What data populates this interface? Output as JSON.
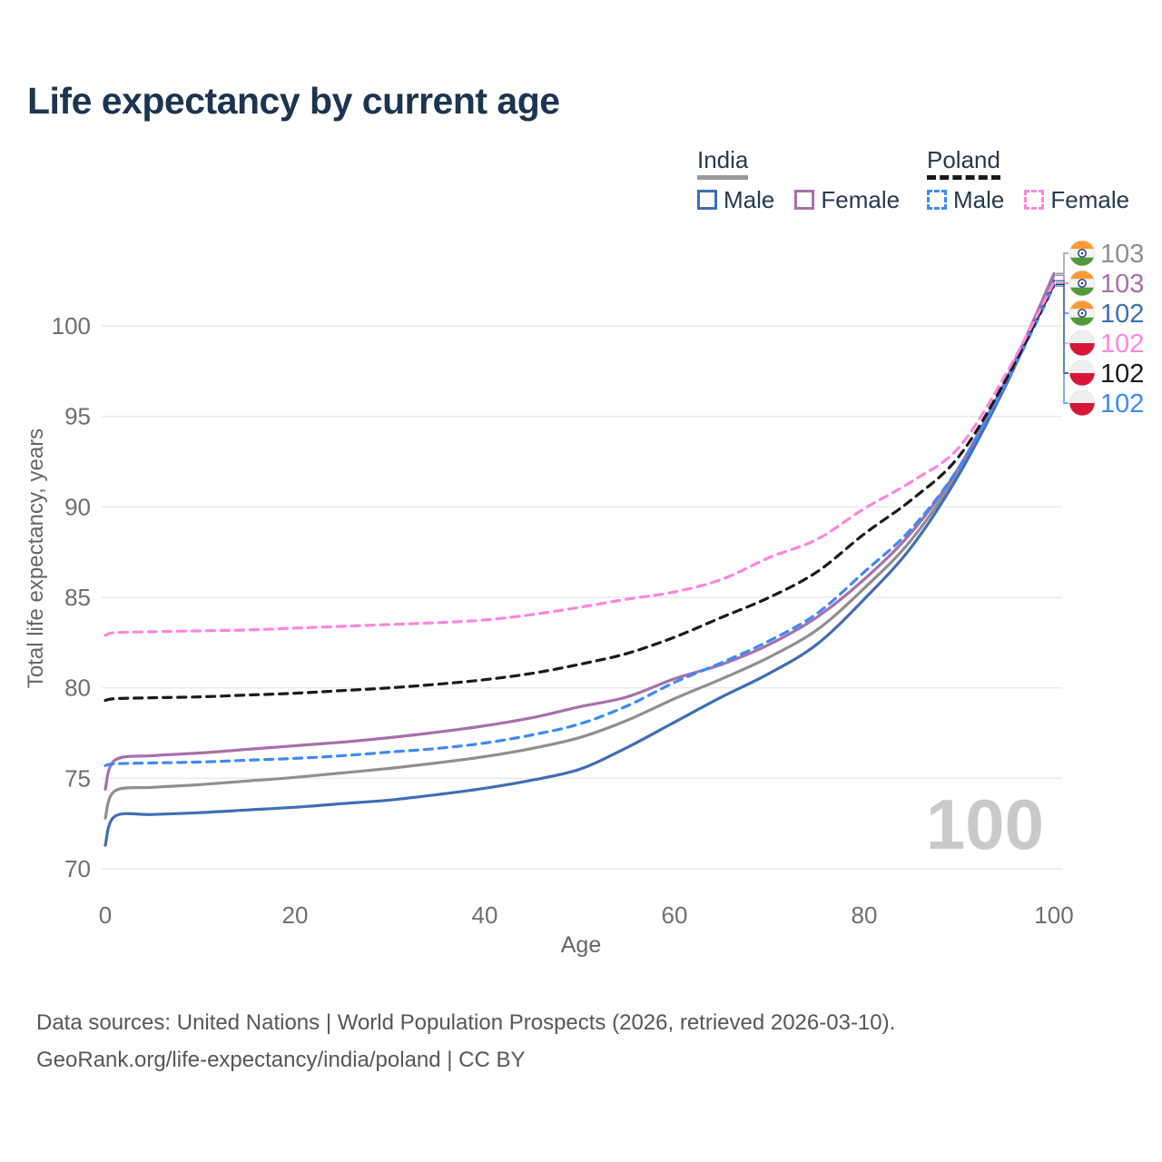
{
  "title": "Life expectancy by current age",
  "watermark": "100",
  "footer": {
    "line1": "Data sources: United Nations | World Population Prospects (2026, retrieved 2026-03-10).",
    "line2": "GeoRank.org/life-expectancy/india/poland | CC BY"
  },
  "legend": {
    "groups": [
      {
        "name": "India",
        "line_style": "solid",
        "underline_color": "#999999",
        "items": [
          {
            "label": "Male",
            "color": "#3f6fb5",
            "dashed": false
          },
          {
            "label": "Female",
            "color": "#a86fad",
            "dashed": false
          }
        ]
      },
      {
        "name": "Poland",
        "line_style": "dashed",
        "underline_color": "#1a1a1a",
        "items": [
          {
            "label": "Male",
            "color": "#3d8af7",
            "dashed": true
          },
          {
            "label": "Female",
            "color": "#ff85e0",
            "dashed": true
          }
        ]
      }
    ]
  },
  "chart_data": {
    "type": "line",
    "title": "Life expectancy by current age",
    "xlabel": "Age",
    "ylabel": "Total life expectancy, years",
    "xlim": [
      0,
      100
    ],
    "ylim": [
      70,
      103
    ],
    "xticks": [
      0,
      20,
      40,
      60,
      80,
      100
    ],
    "yticks": [
      70,
      75,
      80,
      85,
      90,
      95,
      100
    ],
    "grid": true,
    "legend_position": "top-right",
    "x": [
      0,
      1,
      5,
      10,
      15,
      20,
      25,
      30,
      35,
      40,
      45,
      50,
      55,
      60,
      65,
      70,
      75,
      80,
      85,
      90,
      95,
      100
    ],
    "series": [
      {
        "name": "India Both sexes",
        "country": "India",
        "sex": "both",
        "color": "#8f8f8f",
        "dash": false,
        "end_label": "103",
        "values": [
          72.8,
          74.3,
          74.5,
          74.65,
          74.85,
          75.05,
          75.3,
          75.55,
          75.85,
          76.2,
          76.65,
          77.25,
          78.2,
          79.4,
          80.5,
          81.7,
          83.2,
          85.5,
          88.2,
          92.0,
          97.0,
          102.9
        ]
      },
      {
        "name": "India Male",
        "country": "India",
        "sex": "male",
        "color": "#3f6fb5",
        "dash": false,
        "end_label": "102",
        "values": [
          71.3,
          72.9,
          73.0,
          73.1,
          73.25,
          73.4,
          73.6,
          73.8,
          74.1,
          74.45,
          74.9,
          75.5,
          76.7,
          78.1,
          79.5,
          80.8,
          82.4,
          84.9,
          87.8,
          91.8,
          96.8,
          102.5
        ]
      },
      {
        "name": "India Female",
        "country": "India",
        "sex": "female",
        "color": "#a86fad",
        "dash": false,
        "end_label": "103",
        "values": [
          74.4,
          76.0,
          76.25,
          76.4,
          76.6,
          76.8,
          77.0,
          77.25,
          77.55,
          77.9,
          78.35,
          78.95,
          79.5,
          80.5,
          81.3,
          82.4,
          83.9,
          86.0,
          88.6,
          92.2,
          97.1,
          102.8
        ]
      },
      {
        "name": "Poland Male",
        "country": "Poland",
        "sex": "male",
        "color": "#3d8af7",
        "dash": true,
        "end_label": "102",
        "values": [
          75.7,
          75.8,
          75.85,
          75.9,
          76.0,
          76.1,
          76.25,
          76.45,
          76.65,
          76.95,
          77.4,
          78.0,
          79.0,
          80.3,
          81.4,
          82.6,
          84.1,
          86.4,
          88.8,
          92.2,
          96.9,
          102.2
        ]
      },
      {
        "name": "Poland Both sexes",
        "country": "Poland",
        "sex": "both",
        "color": "#1a1a1a",
        "dash": true,
        "end_label": "102",
        "values": [
          79.3,
          79.4,
          79.45,
          79.5,
          79.6,
          79.7,
          79.85,
          80.0,
          80.2,
          80.45,
          80.8,
          81.3,
          81.9,
          82.8,
          83.9,
          85.0,
          86.4,
          88.5,
          90.4,
          92.8,
          97.1,
          102.3
        ]
      },
      {
        "name": "Poland Female",
        "country": "Poland",
        "sex": "female",
        "color": "#ff85e0",
        "dash": true,
        "end_label": "102",
        "values": [
          82.9,
          83.05,
          83.1,
          83.15,
          83.2,
          83.3,
          83.4,
          83.5,
          83.6,
          83.75,
          84.05,
          84.45,
          84.9,
          85.3,
          86.0,
          87.2,
          88.2,
          89.9,
          91.4,
          93.3,
          97.4,
          102.4
        ]
      }
    ],
    "end_label_order": [
      "India Both sexes",
      "India Female",
      "India Male",
      "Poland Female",
      "Poland Both sexes",
      "Poland Male"
    ]
  }
}
